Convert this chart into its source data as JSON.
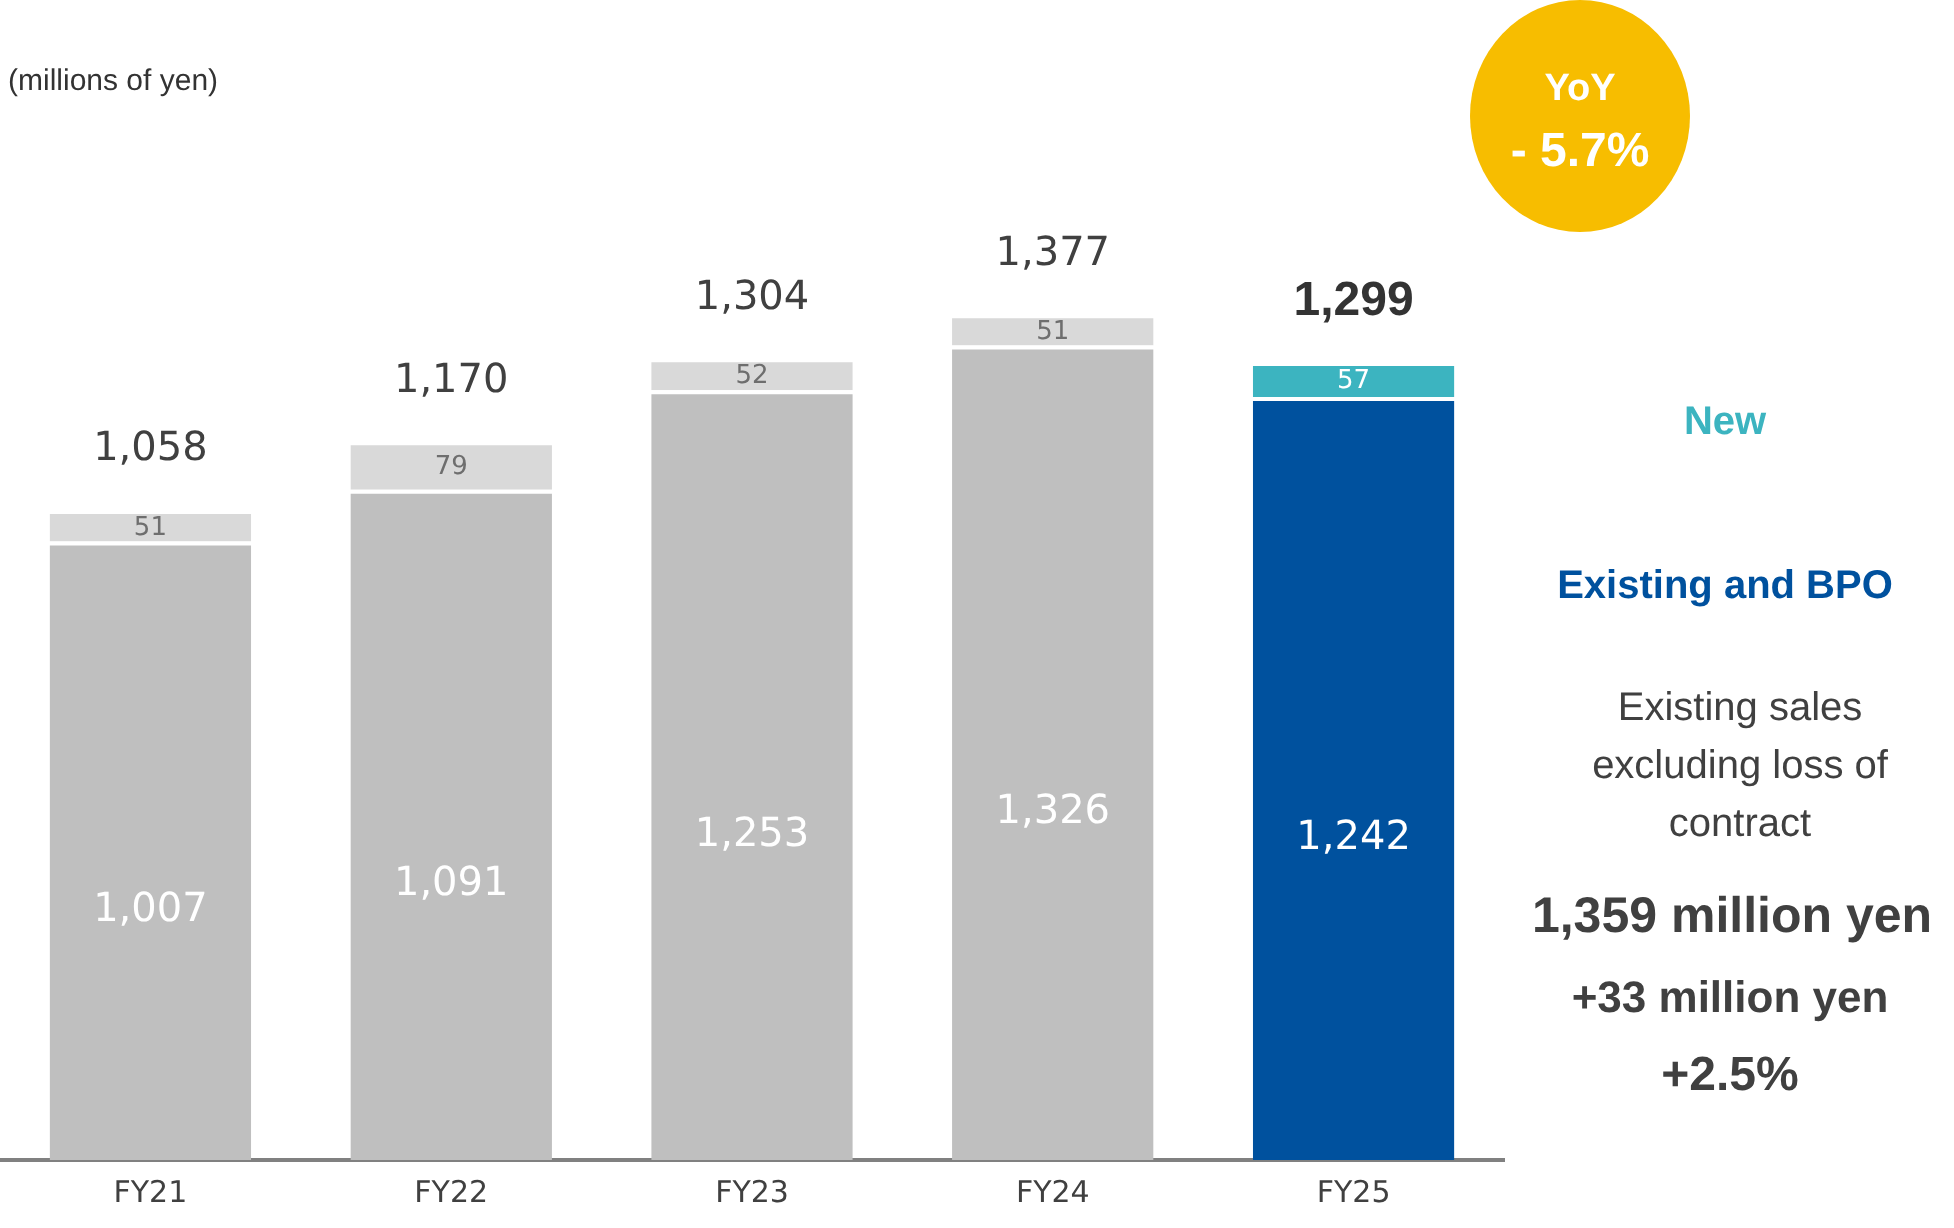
{
  "chart_data": {
    "type": "bar",
    "stacked": true,
    "categories": [
      "FY21",
      "FY22",
      "FY23",
      "FY24",
      "FY25"
    ],
    "series": [
      {
        "name": "Existing and BPO",
        "colors": [
          "#bfbfbf",
          "#bfbfbf",
          "#bfbfbf",
          "#bfbfbf",
          "#00519e"
        ],
        "values": [
          1007,
          1091,
          1253,
          1326,
          1242
        ],
        "value_labels": [
          "1,007",
          "1,091",
          "1,253",
          "1,326",
          "1,242"
        ]
      },
      {
        "name": "New",
        "colors": [
          "#d9d9d9",
          "#d9d9d9",
          "#d9d9d9",
          "#d9d9d9",
          "#3cb4c0"
        ],
        "values": [
          51,
          79,
          52,
          51,
          57
        ],
        "value_labels": [
          "51",
          "79",
          "52",
          "51",
          "57"
        ]
      }
    ],
    "totals": [
      "1,058",
      "1,170",
      "1,304",
      "1,377",
      "1,299"
    ],
    "annotations": [
      "(millions of yen)",
      "YoY",
      "- 5.7%",
      "Existing sales excluding loss of contract",
      "1,359 million yen",
      "+33 million yen",
      "+2.5%"
    ],
    "legend": false,
    "grid": false
  }
}
